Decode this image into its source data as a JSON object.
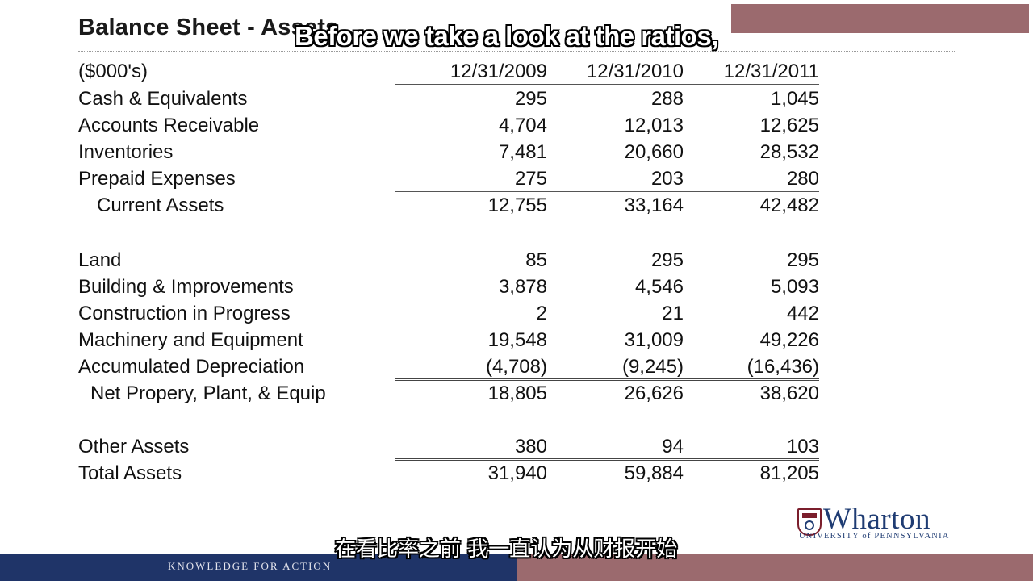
{
  "slide": {
    "title": "Balance Sheet - Assets",
    "units_label": "($000's)",
    "columns": [
      "12/31/2009",
      "12/31/2010",
      "12/31/2011"
    ],
    "rows": [
      {
        "label": "Cash & Equivalents",
        "values": [
          "295",
          "288",
          "1,045"
        ]
      },
      {
        "label": "Accounts Receivable",
        "values": [
          "4,704",
          "12,013",
          "12,625"
        ]
      },
      {
        "label": "Inventories",
        "values": [
          "7,481",
          "20,660",
          "28,532"
        ]
      },
      {
        "label": "Prepaid Expenses",
        "values": [
          "275",
          "203",
          "280"
        ]
      },
      {
        "label": "Current Assets",
        "values": [
          "12,755",
          "33,164",
          "42,482"
        ]
      },
      {
        "label": "Land",
        "values": [
          "85",
          "295",
          "295"
        ]
      },
      {
        "label": "Building & Improvements",
        "values": [
          "3,878",
          "4,546",
          "5,093"
        ]
      },
      {
        "label": "Construction in Progress",
        "values": [
          "2",
          "21",
          "442"
        ]
      },
      {
        "label": "Machinery and Equipment",
        "values": [
          "19,548",
          "31,009",
          "49,226"
        ]
      },
      {
        "label": "Accumulated Depreciation",
        "values": [
          "(4,708)",
          "(9,245)",
          "(16,436)"
        ]
      },
      {
        "label": "Net Propery, Plant, & Equip",
        "values": [
          "18,805",
          "26,626",
          "38,620"
        ]
      },
      {
        "label": "Other Assets",
        "values": [
          "380",
          "94",
          "103"
        ]
      },
      {
        "label": "Total Assets",
        "values": [
          "31,940",
          "59,884",
          "81,205"
        ]
      }
    ]
  },
  "logo": {
    "name": "Wharton",
    "subtitle": "UNIVERSITY of PENNSYLVANIA"
  },
  "footer": {
    "tagline": "KNOWLEDGE FOR ACTION"
  },
  "subtitles": {
    "english": "Before we take a look at the ratios,",
    "chinese": "在看比率之前 我一直认为从财报开始"
  },
  "colors": {
    "footer_navy": "#1f3468",
    "accent_mauve": "#9b6a6e",
    "logo_blue": "#1f3c73",
    "shield_red": "#7b1e2c"
  }
}
